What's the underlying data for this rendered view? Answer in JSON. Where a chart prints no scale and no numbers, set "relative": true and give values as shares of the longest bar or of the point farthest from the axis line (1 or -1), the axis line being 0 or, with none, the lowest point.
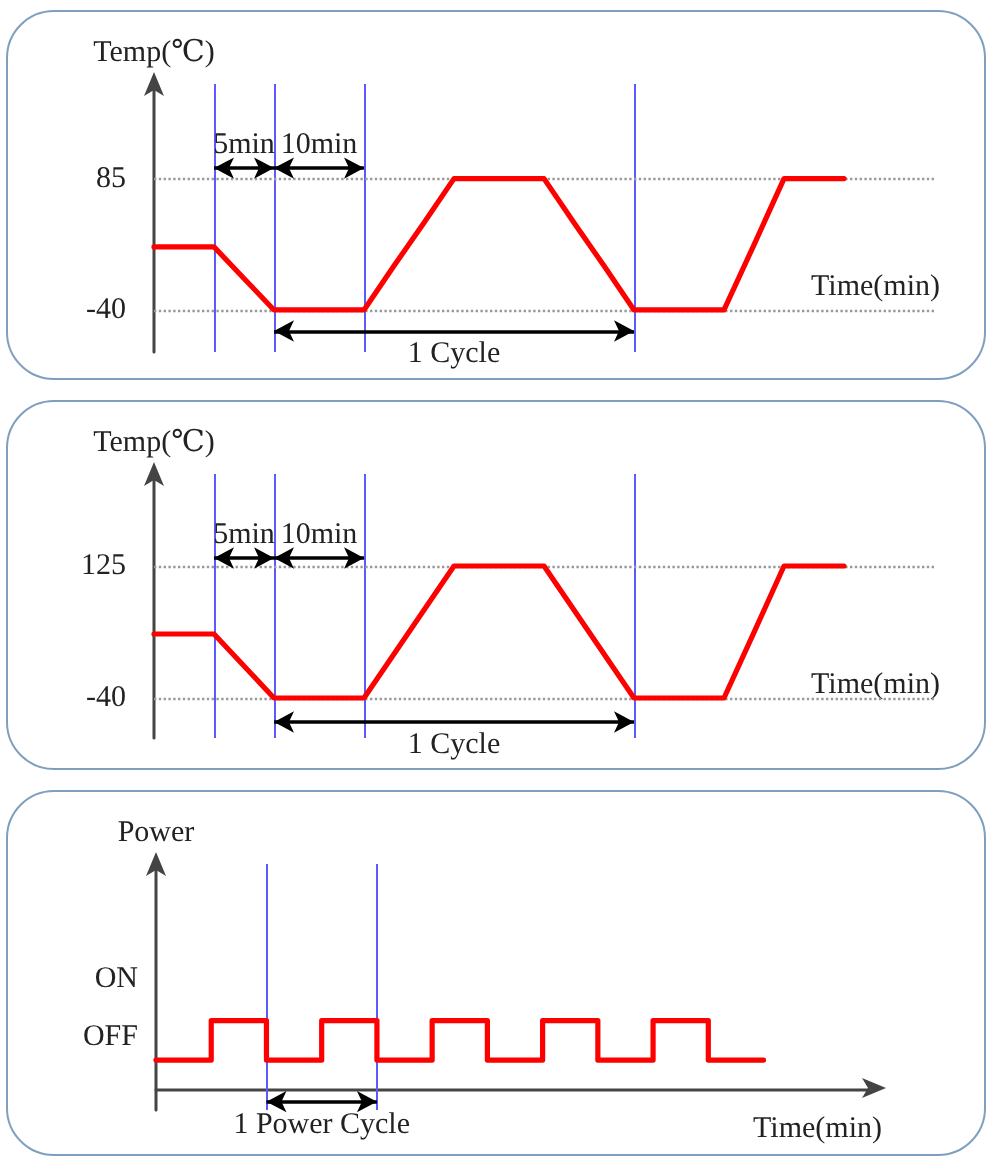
{
  "chart_data": [
    {
      "type": "line",
      "ylabel": "Temp(℃)",
      "xlabel": "Time(min)",
      "categories": [
        null,
        null,
        null,
        null,
        null,
        null,
        null,
        null,
        null,
        null,
        null,
        null,
        null,
        null,
        null,
        null,
        null,
        null,
        null,
        null,
        null,
        null,
        null,
        null,
        null,
        null,
        null
      ],
      "series": [
        {
          "color": "#ff0000",
          "values": [
            20,
            20,
            20,
            -10,
            -40,
            -40,
            -40,
            -40,
            2,
            43,
            85,
            85,
            85,
            85,
            43,
            2,
            -40,
            -40,
            -40,
            -40,
            22,
            85,
            85,
            85,
            null,
            null,
            null
          ]
        }
      ],
      "ylim": [
        -80,
        175
      ],
      "yticks": [
        85,
        -40
      ],
      "tick_labels": "y",
      "grid": true,
      "annotations": [
        "5min",
        "10min",
        "1 Cycle"
      ]
    },
    {
      "type": "line",
      "ylabel": "Temp(℃)",
      "xlabel": "Time(min)",
      "categories": [
        null,
        null,
        null,
        null,
        null,
        null,
        null,
        null,
        null,
        null,
        null,
        null,
        null,
        null,
        null,
        null,
        null,
        null,
        null,
        null,
        null,
        null,
        null,
        null,
        null,
        null,
        null
      ],
      "series": [
        {
          "color": "#ff0000",
          "values": [
            40,
            40,
            40,
            0,
            -40,
            -40,
            -40,
            -40,
            15,
            70,
            125,
            125,
            125,
            125,
            70,
            15,
            -40,
            -40,
            -40,
            -40,
            42,
            125,
            125,
            125,
            null,
            null,
            null
          ]
        }
      ],
      "ylim": [
        -90,
        240
      ],
      "yticks": [
        125,
        -40
      ],
      "tick_labels": "y",
      "grid": true,
      "annotations": [
        "5min",
        "10min",
        "1 Cycle"
      ]
    },
    {
      "type": "step",
      "ylabel": "Power",
      "xlabel": "Time(min)",
      "categories": [
        null,
        null,
        null,
        null,
        null,
        null,
        null,
        null,
        null,
        null,
        null,
        null,
        null,
        null
      ],
      "series": [
        {
          "color": "#ff0000",
          "values": [
            0.43,
            0.43,
            1,
            0.43,
            1,
            0.43,
            1,
            0.43,
            1,
            0.43,
            1,
            0.43,
            null,
            null
          ]
        }
      ],
      "relative": true,
      "tick_labels": false,
      "grid": "x",
      "annotations": [
        "ON",
        "OFF",
        "1 Power Cycle"
      ]
    }
  ]
}
